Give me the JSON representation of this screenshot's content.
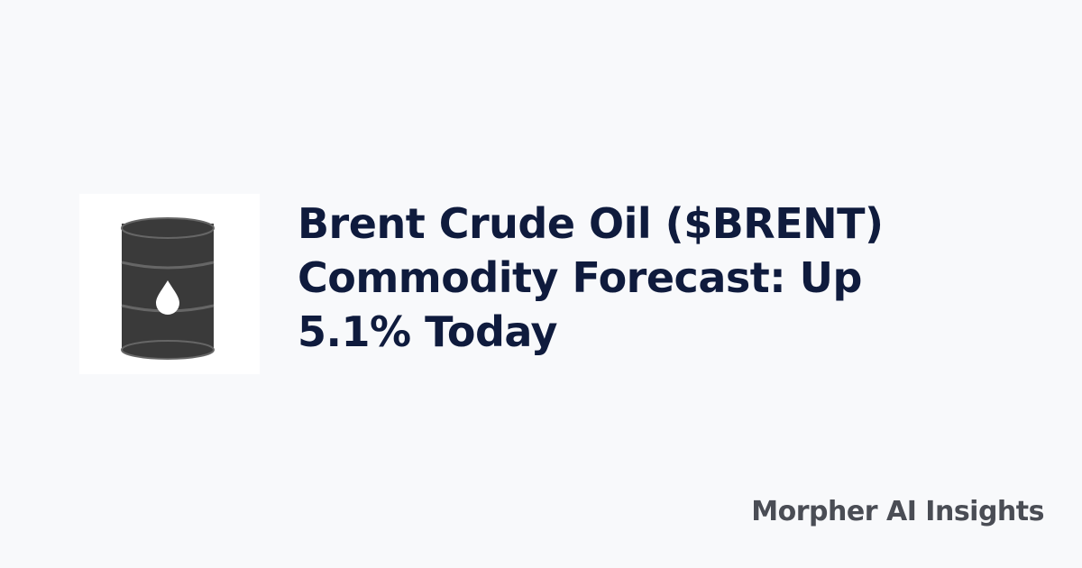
{
  "thumbnail": {
    "icon": "oil-barrel-icon",
    "barrel_color": "#3a3a3a"
  },
  "title": "Brent Crude Oil ($BRENT) Commodity Forecast: Up 5.1% Today",
  "brand": "Morpher AI Insights"
}
